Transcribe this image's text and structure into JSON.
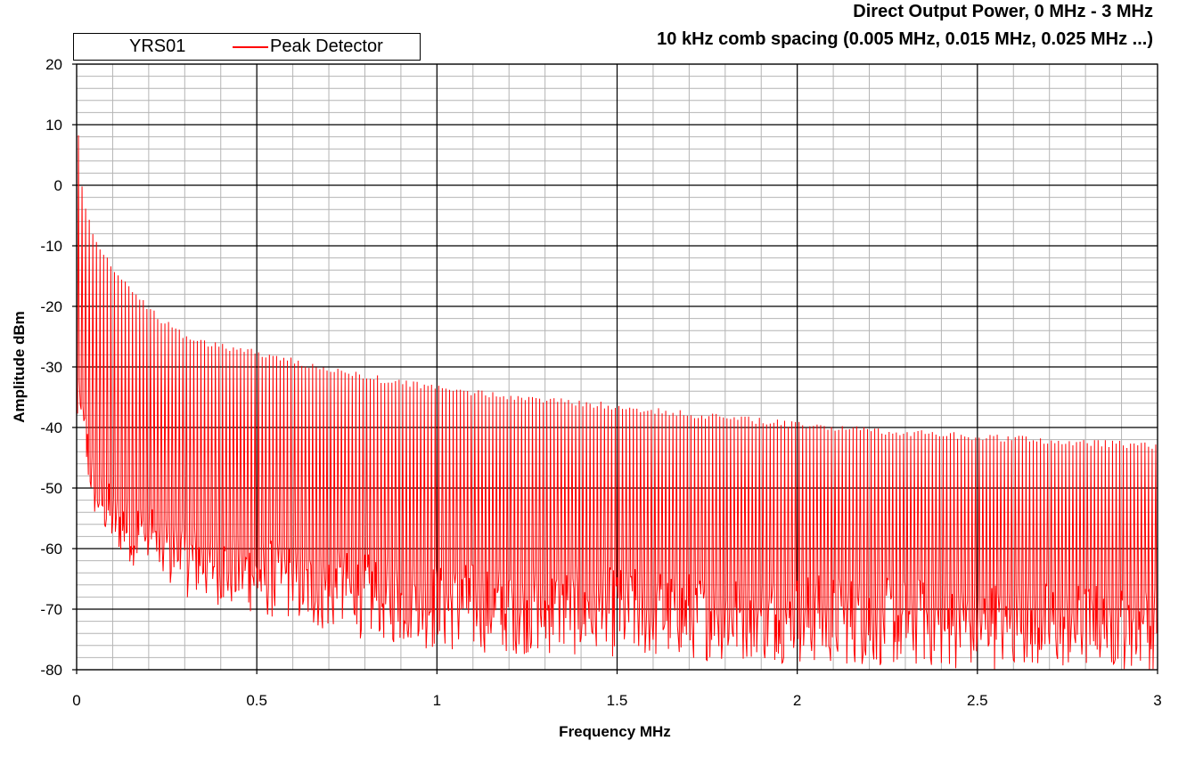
{
  "chart_data": {
    "type": "line",
    "title": "Direct Output Power, 0 MHz - 3 MHz",
    "subtitle": "10 kHz comb spacing (0.005 MHz, 0.015 MHz, 0.025 MHz ...)",
    "xlabel": "Frequency MHz",
    "ylabel": "Amplitude dBm",
    "xlim": [
      0,
      3
    ],
    "ylim": [
      -80,
      20
    ],
    "x_ticks": [
      0,
      0.5,
      1,
      1.5,
      2,
      2.5,
      3
    ],
    "y_ticks": [
      -80,
      -70,
      -60,
      -50,
      -40,
      -30,
      -20,
      -10,
      0,
      10,
      20
    ],
    "x_tick_labels": [
      "0",
      "0.5",
      "1",
      "1.5",
      "2",
      "2.5",
      "3"
    ],
    "y_tick_labels": [
      "-80",
      "-70",
      "-60",
      "-50",
      "-40",
      "-30",
      "-20",
      "-10",
      "0",
      "10",
      "20"
    ],
    "grid": true,
    "legend": {
      "placement": "top-left",
      "name": "YRS01",
      "entries": [
        "Peak Detector"
      ]
    },
    "series": [
      {
        "name": "Peak Detector",
        "color": "#ff0000",
        "comb_spacing_mhz": 0.01,
        "first_comb_mhz": 0.005,
        "peak_envelope": {
          "x": [
            0,
            0.005,
            0.015,
            0.025,
            0.05,
            0.1,
            0.2,
            0.3,
            0.4,
            0.5,
            0.7,
            1.0,
            1.5,
            2.0,
            2.5,
            3.0
          ],
          "y": [
            9,
            9,
            0,
            -3,
            -8,
            -13,
            -20,
            -24.5,
            -26,
            -27,
            -30,
            -33,
            -36,
            -39,
            -41,
            -42.5
          ]
        },
        "noise_ceiling": {
          "x": [
            0,
            0.05,
            0.1,
            0.2,
            0.3,
            0.5,
            0.7,
            1.0,
            1.5,
            2.0,
            2.5,
            3.0
          ],
          "y": [
            -30,
            -45,
            -50,
            -52,
            -55,
            -58,
            -60,
            -62,
            -63,
            -64,
            -65,
            -66
          ]
        },
        "noise_floor": {
          "x": [
            0,
            0.05,
            0.1,
            0.2,
            0.3,
            0.5,
            0.7,
            1.0,
            1.5,
            2.0,
            2.5,
            3.0
          ],
          "y": [
            -40,
            -55,
            -60,
            -65,
            -68,
            -71,
            -74,
            -77,
            -78,
            -79,
            -80,
            -80
          ]
        }
      }
    ]
  }
}
